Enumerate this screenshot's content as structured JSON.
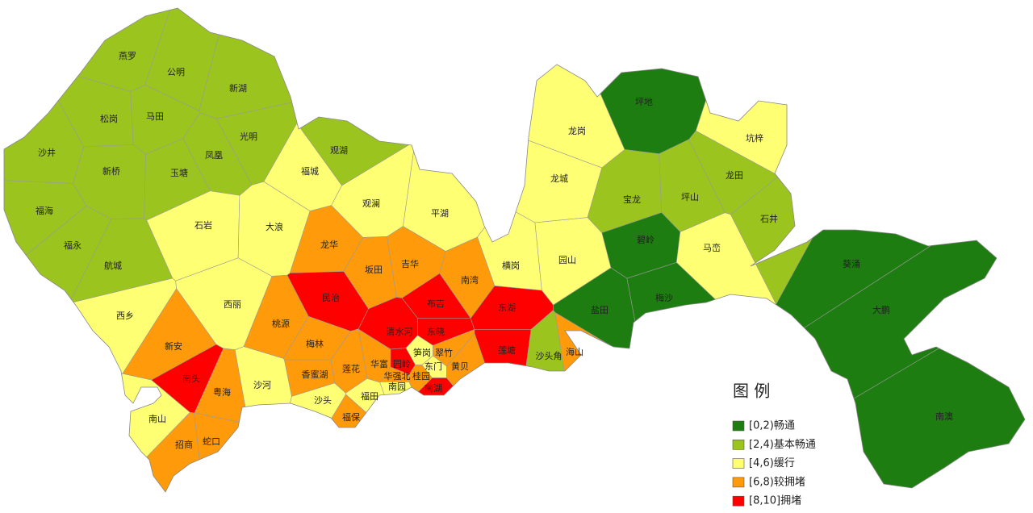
{
  "legend": {
    "title": "图 例",
    "items": [
      {
        "label": "[0,2)畅通",
        "color": "#1e7d10"
      },
      {
        "label": "[2,4)基本畅通",
        "color": "#9bc41e"
      },
      {
        "label": "[4,6)缓行",
        "color": "#ffff73"
      },
      {
        "label": "[6,8)较拥堵",
        "color": "#ff9a0a"
      },
      {
        "label": "[8,10]拥堵",
        "color": "#ff0000"
      }
    ]
  },
  "regions": [
    {
      "name": "燕罗",
      "color": "#9bc41e"
    },
    {
      "name": "公明",
      "color": "#9bc41e"
    },
    {
      "name": "新湖",
      "color": "#9bc41e"
    },
    {
      "name": "松岗",
      "color": "#9bc41e"
    },
    {
      "name": "马田",
      "color": "#9bc41e"
    },
    {
      "name": "光明",
      "color": "#9bc41e"
    },
    {
      "name": "沙井",
      "color": "#9bc41e"
    },
    {
      "name": "新桥",
      "color": "#9bc41e"
    },
    {
      "name": "凤凰",
      "color": "#9bc41e"
    },
    {
      "name": "玉塘",
      "color": "#9bc41e"
    },
    {
      "name": "福海",
      "color": "#9bc41e"
    },
    {
      "name": "福永",
      "color": "#9bc41e"
    },
    {
      "name": "航城",
      "color": "#9bc41e"
    },
    {
      "name": "西乡",
      "color": "#ffff73"
    },
    {
      "name": "石岩",
      "color": "#ffff73"
    },
    {
      "name": "大浪",
      "color": "#ffff73"
    },
    {
      "name": "福城",
      "color": "#ffff73"
    },
    {
      "name": "观澜",
      "color": "#ffff73"
    },
    {
      "name": "观湖",
      "color": "#9bc41e"
    },
    {
      "name": "平湖",
      "color": "#ffff73"
    },
    {
      "name": "龙华",
      "color": "#ff9a0a"
    },
    {
      "name": "坂田",
      "color": "#ff9a0a"
    },
    {
      "name": "吉华",
      "color": "#ff9a0a"
    },
    {
      "name": "南湾",
      "color": "#ff9a0a"
    },
    {
      "name": "民治",
      "color": "#ff0000"
    },
    {
      "name": "布吉",
      "color": "#ff0000"
    },
    {
      "name": "西丽",
      "color": "#ffff73"
    },
    {
      "name": "桃源",
      "color": "#ff9a0a"
    },
    {
      "name": "新安",
      "color": "#ff9a0a"
    },
    {
      "name": "南头",
      "color": "#ff0000"
    },
    {
      "name": "粤海",
      "color": "#ff9a0a"
    },
    {
      "name": "沙河",
      "color": "#ffff73"
    },
    {
      "name": "南山",
      "color": "#ffff73"
    },
    {
      "name": "招商",
      "color": "#ff9a0a"
    },
    {
      "name": "蛇口",
      "color": "#ff9a0a"
    },
    {
      "name": "梅林",
      "color": "#ff9a0a"
    },
    {
      "name": "香蜜湖",
      "color": "#ff9a0a"
    },
    {
      "name": "莲花",
      "color": "#ff9a0a"
    },
    {
      "name": "华富",
      "color": "#ff9a0a"
    },
    {
      "name": "沙头",
      "color": "#ffff73"
    },
    {
      "name": "福田",
      "color": "#ffff73"
    },
    {
      "name": "福保",
      "color": "#ff9a0a"
    },
    {
      "name": "清水河",
      "color": "#ff0000"
    },
    {
      "name": "东晓",
      "color": "#ff0000"
    },
    {
      "name": "笋岗",
      "color": "#ffff73"
    },
    {
      "name": "翠竹",
      "color": "#ff9a0a"
    },
    {
      "name": "园岭",
      "color": "#ff0000"
    },
    {
      "name": "东门",
      "color": "#ffff73"
    },
    {
      "name": "黄贝",
      "color": "#ff9a0a"
    },
    {
      "name": "华强北",
      "color": "#ff9a0a"
    },
    {
      "name": "桂园",
      "color": "#ff9a0a"
    },
    {
      "name": "南园",
      "color": "#ffff73"
    },
    {
      "name": "南湖",
      "color": "#ff0000"
    },
    {
      "name": "东湖",
      "color": "#ff0000"
    },
    {
      "name": "莲塘",
      "color": "#ff0000"
    },
    {
      "name": "沙头角",
      "color": "#9bc41e"
    },
    {
      "name": "海山",
      "color": "#ff9a0a"
    },
    {
      "name": "横岗",
      "color": "#ffff73"
    },
    {
      "name": "园山",
      "color": "#ffff73"
    },
    {
      "name": "龙岗",
      "color": "#ffff73"
    },
    {
      "name": "龙城",
      "color": "#ffff73"
    },
    {
      "name": "坪地",
      "color": "#1e7d10"
    },
    {
      "name": "坑梓",
      "color": "#ffff73"
    },
    {
      "name": "龙田",
      "color": "#9bc41e"
    },
    {
      "name": "宝龙",
      "color": "#9bc41e"
    },
    {
      "name": "坪山",
      "color": "#9bc41e"
    },
    {
      "name": "石井",
      "color": "#9bc41e"
    },
    {
      "name": "碧岭",
      "color": "#1e7d10"
    },
    {
      "name": "马峦",
      "color": "#ffff73"
    },
    {
      "name": "盐田",
      "color": "#1e7d10"
    },
    {
      "name": "梅沙",
      "color": "#1e7d10"
    },
    {
      "name": "葵涌",
      "color": "#1e7d10"
    },
    {
      "name": "大鹏",
      "color": "#1e7d10"
    },
    {
      "name": "南澳",
      "color": "#1e7d10"
    }
  ]
}
